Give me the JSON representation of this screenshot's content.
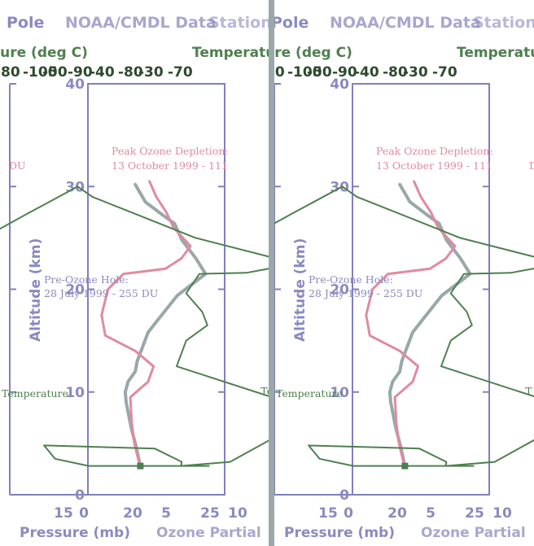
{
  "colors": {
    "axis": "#8080bc",
    "axis_text": "#8a8ac0",
    "ozone_late": "#e08aa0",
    "ozone_early": "#98a8a8",
    "temperature": "#4f7f4f",
    "divider": "#9aa8a8"
  },
  "panels": [
    {
      "title_left": "Pole",
      "title_overlap": "NOAA/CMDL Data",
      "title_right": "Station",
      "pressure_axis_label": "Pressure (mb)",
      "ozone_axis_label": "Ozone Partial",
      "temperature_axis_label_left": "ture (deg C)",
      "temperature_axis_label_right": "Temperature",
      "altitude_axis_label": "Altitude (km)",
      "peak_label_1": "Peak Ozone Depletion:",
      "peak_label_2": "13 October 1999 - 111",
      "peak_label_cut": "DU",
      "pre_label_1": "Pre-Ozone Hole:",
      "pre_label_2": "28 July 1999 - 255 DU",
      "temperature_series_label": "Temperature",
      "temperature_series_label_right": "- Temperature"
    },
    {
      "title_left": "Pole",
      "title_overlap": "NOAA/CMDL Data",
      "title_right": "Station",
      "pressure_axis_label": "Pressure (mb)",
      "ozone_axis_label": "Ozone Partial",
      "temperature_axis_label_left": "ture (deg C)",
      "temperature_axis_label_right": "Temperatu",
      "altitude_axis_label": "Altitude (km)",
      "peak_label_1": "Peak Ozone Depletion:",
      "peak_label_2": "13 October 1999 - 111",
      "peak_label_cut": "DU",
      "pre_label_1": "Pre-Ozone Hole:",
      "pre_label_2": "28 July 1999 - 255 DU",
      "temperature_series_label": "Temperature",
      "temperature_series_label_right": "- T"
    }
  ],
  "chart_data": {
    "type": "line",
    "title": "NOAA/CMDL Data",
    "ylabel": "Altitude (km)",
    "ylim": [
      0,
      40
    ],
    "yticks": [
      "0",
      "10",
      "20",
      "30",
      "40"
    ],
    "x_bottom_label": "Pressure (mb)",
    "x_bottom_ticks": [
      "15",
      "0",
      "20",
      "5",
      "25",
      "10"
    ],
    "x_bottom_overlap_label": "Ozone Partial",
    "x_top_label": "Temperature (deg C)",
    "x_top_ticks": [
      "-80",
      "-100",
      "-50",
      "-90",
      "-40",
      "-80",
      "-30",
      "-70"
    ],
    "ozone_xlim": [
      0,
      30
    ],
    "temperature_xlim": [
      -100,
      -20
    ],
    "series": [
      {
        "name": "Pre-Ozone Hole: 28 July 1999 - 255 DU",
        "axis": "ozone",
        "x": [
          11.5,
          10.5,
          9.5,
          8.4,
          8.2,
          8.8,
          10.4,
          10.8,
          13.2,
          15.3,
          19.6,
          25.8,
          23.7,
          20.6,
          19.0,
          16.5,
          12.6,
          10.4
        ],
        "y": [
          2.8,
          4.8,
          6.5,
          9.0,
          10.0,
          11.0,
          12.0,
          13.0,
          15.8,
          17.0,
          19.4,
          21.5,
          23.0,
          24.8,
          26.4,
          27.2,
          28.5,
          30.2
        ]
      },
      {
        "name": "Peak Ozone Depletion: 13 October 1999 - 111 DU",
        "axis": "ozone",
        "x": [
          11.4,
          10.2,
          9.6,
          9.3,
          13.2,
          14.4,
          10.4,
          3.8,
          3.0,
          4.4,
          7.8,
          17.0,
          20.5,
          22.5,
          18.8,
          17.2,
          15.0,
          13.5
        ],
        "y": [
          2.8,
          5.0,
          7.0,
          9.5,
          11.0,
          12.5,
          14.0,
          15.5,
          17.5,
          20.0,
          21.5,
          22.0,
          23.0,
          24.2,
          26.0,
          27.5,
          29.0,
          30.5
        ]
      },
      {
        "name": "Temperature",
        "axis": "temperature",
        "x": [
          -37.2,
          -70.0,
          -79.2,
          -82.2,
          -52.0,
          -44.6,
          -44.8,
          -31.4,
          -7.0,
          -46.0,
          -43.4,
          -37.6,
          -39.0,
          -43.4,
          -39.8,
          -27.0,
          -13.4,
          -40.8,
          -69.0,
          -73.0,
          -86.0,
          -111.5
        ],
        "y": [
          2.8,
          2.8,
          3.5,
          4.8,
          4.5,
          3.2,
          2.8,
          3.2,
          8.0,
          12.5,
          15.0,
          16.5,
          17.8,
          19.6,
          21.5,
          21.6,
          22.5,
          25.0,
          29.0,
          30.0,
          27.5,
          22.5
        ]
      }
    ],
    "annotations": [
      "Peak Ozone Depletion:",
      "13 October 1999 - 111 DU",
      "Pre-Ozone Hole:",
      "28 July 1999 - 255 DU",
      "- Temperature"
    ]
  }
}
